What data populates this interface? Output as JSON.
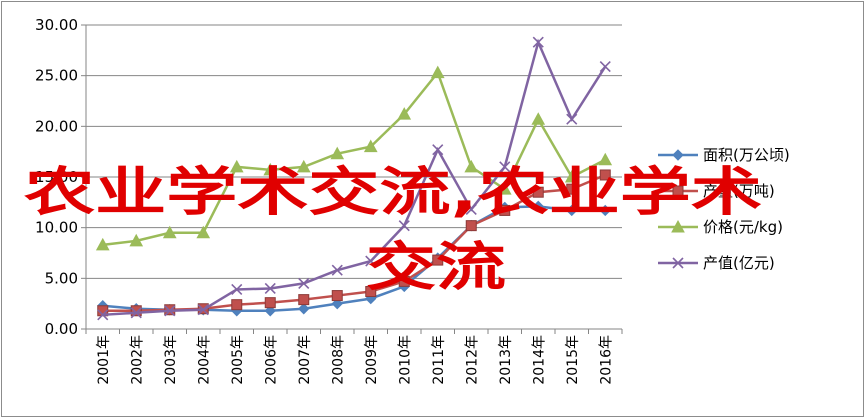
{
  "chart_data": {
    "type": "line",
    "categories": [
      "2001年",
      "2002年",
      "2003年",
      "2004年",
      "2005年",
      "2006年",
      "2007年",
      "2008年",
      "2009年",
      "2010年",
      "2011年",
      "2012年",
      "2013年",
      "2014年",
      "2015年",
      "2016年"
    ],
    "ylim": [
      0,
      30
    ],
    "yticks": [
      "0.00",
      "5.00",
      "10.00",
      "15.00",
      "20.00",
      "25.00",
      "30.00"
    ],
    "grid": "horizontal",
    "legend": "right",
    "series": [
      {
        "name": "面积(万公顷)",
        "color": "#4f81bd",
        "marker": "diamond",
        "values": [
          2.3,
          2.0,
          1.9,
          1.9,
          1.8,
          1.8,
          2.0,
          2.5,
          3.0,
          4.2,
          7.0,
          10.2,
          12.0,
          12.1,
          11.7,
          11.7
        ]
      },
      {
        "name": "产量(万吨)",
        "color": "#c0504d",
        "marker": "square",
        "values": [
          1.8,
          1.8,
          1.9,
          2.0,
          2.4,
          2.6,
          2.9,
          3.3,
          3.7,
          4.7,
          6.8,
          10.2,
          11.7,
          13.5,
          13.8,
          15.2
        ]
      },
      {
        "name": "价格(元/kg)",
        "color": "#9bbb59",
        "marker": "triangle",
        "values": [
          8.3,
          8.7,
          9.5,
          9.5,
          16.0,
          15.7,
          16.0,
          17.3,
          18.0,
          21.2,
          25.3,
          16.0,
          13.8,
          20.7,
          15.0,
          16.7
        ]
      },
      {
        "name": "产值(亿元)",
        "color": "#8064a2",
        "marker": "x",
        "values": [
          1.4,
          1.6,
          1.8,
          1.9,
          3.9,
          4.0,
          4.5,
          5.8,
          6.7,
          10.2,
          17.7,
          11.8,
          16.0,
          28.3,
          20.7,
          25.9
        ]
      }
    ]
  },
  "watermark": {
    "line1": "农业学术交流,农业学术",
    "line2": "交流"
  }
}
